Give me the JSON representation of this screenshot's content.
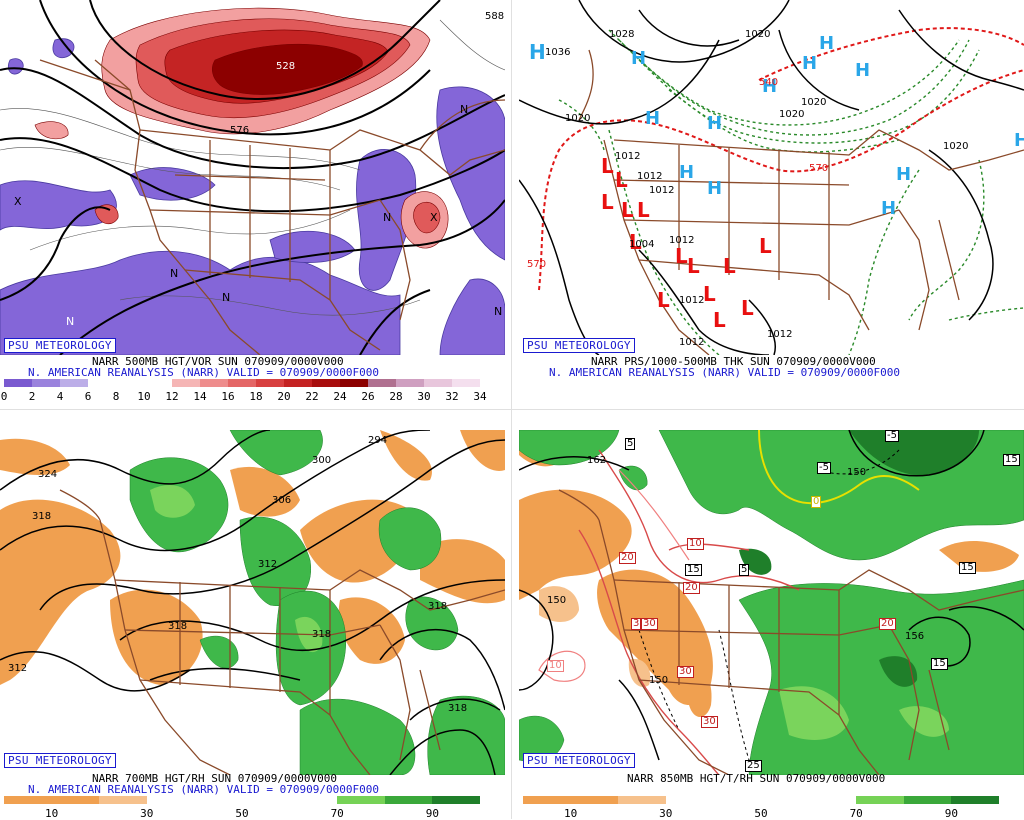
{
  "badge": "PSU METEOROLOGY",
  "panels": {
    "tl": {
      "caption1": "NARR 500MB HGT/VOR SUN 070909/0000V000",
      "caption2": "N. AMERICAN REANALYSIS (NARR) VALID = 070909/0000F000",
      "contour_labels": [
        "528",
        "576",
        "588"
      ],
      "symbols": [
        "N",
        "X"
      ],
      "colorbar": {
        "colors": [
          "#7a5ad0",
          "#9a82dd",
          "#bcaee8",
          "#ffffff",
          "#ffffff",
          "#ffffff",
          "#f5b5b5",
          "#ee8c8c",
          "#e46666",
          "#d84040",
          "#c42222",
          "#a80d0d",
          "#8c0000",
          "#b07090",
          "#cf9fc0",
          "#e8c6dc",
          "#f4dfee"
        ],
        "ticks": [
          "0",
          "2",
          "4",
          "6",
          "8",
          "10",
          "12",
          "14",
          "16",
          "18",
          "20",
          "22",
          "24",
          "26",
          "28",
          "30",
          "32",
          "34"
        ]
      }
    },
    "tr": {
      "caption1": "NARR PRS/1000-500MB THK SUN 070909/0000V000",
      "caption2": "N. AMERICAN REANALYSIS (NARR) VALID = 070909/0000F000",
      "contour_labels": [
        "1036",
        "1028",
        "1020",
        "1020",
        "1020",
        "1020",
        "1012",
        "1012",
        "1012",
        "1012",
        "1012",
        "1004",
        "540",
        "570",
        "570",
        "1012"
      ],
      "high_symbol": "H",
      "low_symbol": "L"
    },
    "bl": {
      "caption1": "NARR 700MB HGT/RH SUN 070909/0000V000",
      "caption2": "N. AMERICAN REANALYSIS (NARR) VALID = 070909/0000F000",
      "contour_labels": [
        "324",
        "318",
        "312",
        "300",
        "306",
        "294",
        "312",
        "318",
        "318",
        "318",
        "318"
      ],
      "colorbar": {
        "colors": [
          "#f0a050",
          "#f0a050",
          "#f6c18c",
          "#ffffff",
          "#ffffff",
          "#ffffff",
          "#ffffff",
          "#76d256",
          "#3aa83a",
          "#1f7f2a"
        ],
        "ticks": [
          "10",
          "30",
          "50",
          "70",
          "90"
        ]
      }
    },
    "br": {
      "caption1": "NARR 850MB HGT/T/RH SUN 070909/0000V000",
      "temp_labels": [
        "5",
        "-5",
        "-5",
        "0",
        "10",
        "15",
        "5",
        "20",
        "20",
        "10",
        "30",
        "3",
        "30",
        "30",
        "25",
        "20",
        "15",
        "15",
        "15"
      ],
      "contour_labels": [
        "162",
        "150",
        "150",
        "150",
        "156"
      ],
      "colorbar": {
        "colors": [
          "#f0a050",
          "#f0a050",
          "#f6c18c",
          "#ffffff",
          "#ffffff",
          "#ffffff",
          "#ffffff",
          "#76d256",
          "#3aa83a",
          "#1f7f2a"
        ],
        "ticks": [
          "10",
          "30",
          "50",
          "70",
          "90"
        ]
      }
    }
  }
}
